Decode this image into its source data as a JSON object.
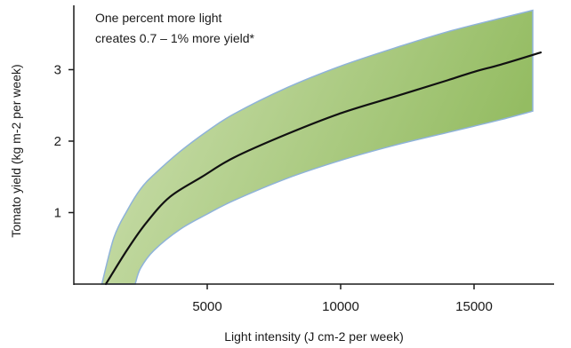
{
  "chart_data": {
    "type": "line",
    "title": "",
    "xlabel": "Light intensity (J cm-2 per week)",
    "ylabel": "Tomato yield (kg m-2 per week)",
    "xlim": [
      0,
      18000
    ],
    "ylim": [
      0,
      3.9
    ],
    "xticks": [
      5000,
      10000,
      15000
    ],
    "xtick_labels": [
      "5000",
      "10000",
      "15000"
    ],
    "yticks": [
      1,
      2,
      3
    ],
    "ytick_labels": [
      "1",
      "2",
      "3"
    ],
    "grid": false,
    "annotation": [
      "One percent more light",
      "creates 0.7 – 1% more yield*"
    ],
    "series": [
      {
        "role": "mean",
        "x": [
          1200,
          2000,
          2700,
          3600,
          4800,
          6000,
          8000,
          10000,
          12000,
          14000,
          15000,
          16000,
          17500
        ],
        "y": [
          0,
          0.48,
          0.85,
          1.22,
          1.5,
          1.77,
          2.1,
          2.39,
          2.62,
          2.85,
          2.97,
          3.07,
          3.24
        ]
      },
      {
        "role": "band-upper",
        "x": [
          1050,
          1500,
          2000,
          2500,
          3000,
          4000,
          5000,
          6000,
          8000,
          10000,
          12000,
          14000,
          16000,
          17200
        ],
        "y": [
          0,
          0.65,
          1.03,
          1.33,
          1.53,
          1.86,
          2.14,
          2.38,
          2.75,
          3.05,
          3.3,
          3.53,
          3.72,
          3.83
        ]
      },
      {
        "role": "band-lower",
        "x": [
          17200,
          16000,
          15000,
          14000,
          12000,
          10000,
          8000,
          6000,
          5000,
          4000,
          3000,
          2500,
          2300
        ],
        "y": [
          2.42,
          2.3,
          2.21,
          2.12,
          1.94,
          1.73,
          1.48,
          1.17,
          0.98,
          0.77,
          0.47,
          0.22,
          0
        ]
      }
    ],
    "colors": {
      "band_fill_light": "#cfe1b3",
      "band_fill_dark": "#94bc62",
      "band_edge": "#8fb3d9",
      "line": "#111111",
      "axis": "#1a1a1a"
    }
  }
}
